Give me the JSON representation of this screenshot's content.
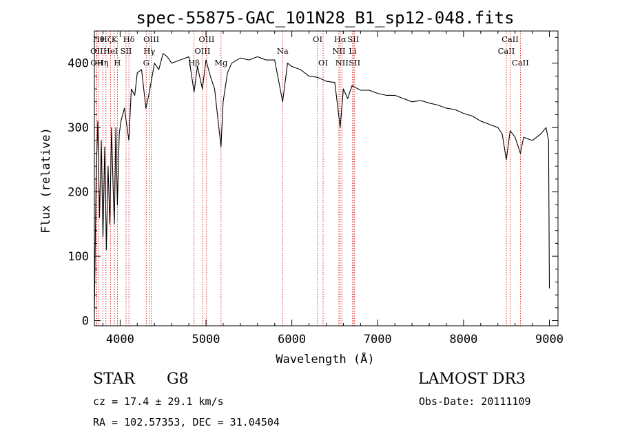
{
  "chart_data": {
    "type": "line",
    "title": "spec-55875-GAC_101N28_B1_sp12-048.fits",
    "xlabel": "Wavelength (Å)",
    "ylabel": "Flux (relative)",
    "xlim": [
      3700,
      9100
    ],
    "ylim": [
      -8,
      450
    ],
    "x_ticks": [
      4000,
      5000,
      6000,
      7000,
      8000,
      9000
    ],
    "y_ticks": [
      0,
      100,
      200,
      300,
      400
    ],
    "x_tick_labels": [
      "4000",
      "5000",
      "6000",
      "7000",
      "8000",
      "9000"
    ],
    "y_tick_labels": [
      "0",
      "100",
      "200",
      "300",
      "400"
    ],
    "series": [
      {
        "name": "spectrum",
        "color": "#000000",
        "x": [
          3700,
          3720,
          3740,
          3760,
          3780,
          3800,
          3820,
          3840,
          3860,
          3880,
          3900,
          3920,
          3933,
          3950,
          3968,
          3990,
          4010,
          4050,
          4102,
          4130,
          4170,
          4200,
          4250,
          4300,
          4340,
          4400,
          4450,
          4500,
          4550,
          4600,
          4700,
          4800,
          4861,
          4900,
          4958,
          5000,
          5050,
          5100,
          5150,
          5175,
          5200,
          5250,
          5300,
          5400,
          5500,
          5600,
          5700,
          5800,
          5893,
          5950,
          6000,
          6100,
          6200,
          6300,
          6400,
          6500,
          6563,
          6600,
          6650,
          6700,
          6800,
          6900,
          7000,
          7100,
          7200,
          7300,
          7400,
          7500,
          7600,
          7700,
          7800,
          7900,
          8000,
          8100,
          8200,
          8300,
          8400,
          8450,
          8498,
          8542,
          8600,
          8662,
          8700,
          8800,
          8900,
          8960,
          8990,
          9000
        ],
        "values": [
          10,
          220,
          310,
          160,
          280,
          130,
          270,
          110,
          240,
          150,
          300,
          200,
          150,
          300,
          180,
          290,
          310,
          330,
          280,
          360,
          350,
          385,
          390,
          330,
          355,
          400,
          390,
          415,
          410,
          400,
          405,
          410,
          355,
          395,
          360,
          405,
          380,
          360,
          300,
          270,
          340,
          385,
          400,
          408,
          405,
          410,
          405,
          405,
          340,
          400,
          395,
          390,
          380,
          378,
          372,
          370,
          300,
          360,
          345,
          365,
          358,
          358,
          353,
          350,
          350,
          345,
          340,
          342,
          338,
          335,
          330,
          328,
          322,
          318,
          310,
          305,
          300,
          290,
          250,
          295,
          285,
          260,
          285,
          280,
          290,
          300,
          280,
          50
        ]
      }
    ],
    "line_markers": [
      {
        "wl": 3750,
        "label": "Hθ",
        "row": 0
      },
      {
        "wl": 3726,
        "label": "OII",
        "row": 1
      },
      {
        "wl": 3729,
        "label": "OII",
        "row": 2
      },
      {
        "wl": 3798,
        "label": "Hη",
        "row": 2
      },
      {
        "wl": 3835,
        "label": "Hζ",
        "row": 0
      },
      {
        "wl": 3889,
        "label": "HeI",
        "row": 1
      },
      {
        "wl": 3933,
        "label": "K",
        "row": 0
      },
      {
        "wl": 3968,
        "label": "H",
        "row": 2
      },
      {
        "wl": 4069,
        "label": "SII",
        "row": 1
      },
      {
        "wl": 4102,
        "label": "Hδ",
        "row": 0
      },
      {
        "wl": 4304,
        "label": "G",
        "row": 2
      },
      {
        "wl": 4340,
        "label": "Hγ",
        "row": 1
      },
      {
        "wl": 4363,
        "label": "OIII",
        "row": 0
      },
      {
        "wl": 4861,
        "label": "Hβ",
        "row": 2
      },
      {
        "wl": 4959,
        "label": "OIII",
        "row": 1
      },
      {
        "wl": 5007,
        "label": "OIII",
        "row": 0
      },
      {
        "wl": 5175,
        "label": "Mg",
        "row": 2
      },
      {
        "wl": 5893,
        "label": "Na",
        "row": 1
      },
      {
        "wl": 6300,
        "label": "OI",
        "row": 0
      },
      {
        "wl": 6364,
        "label": "OI",
        "row": 2
      },
      {
        "wl": 6548,
        "label": "NII",
        "row": 1
      },
      {
        "wl": 6563,
        "label": "Hα",
        "row": 0
      },
      {
        "wl": 6583,
        "label": "NII",
        "row": 2
      },
      {
        "wl": 6708,
        "label": "Li",
        "row": 1
      },
      {
        "wl": 6716,
        "label": "SII",
        "row": 0
      },
      {
        "wl": 6731,
        "label": "SII",
        "row": 2
      },
      {
        "wl": 8498,
        "label": "CaII",
        "row": 1
      },
      {
        "wl": 8542,
        "label": "CaII",
        "row": 0
      },
      {
        "wl": 8662,
        "label": "CaII",
        "row": 2
      }
    ],
    "marker_color": "#cc0000"
  },
  "info": {
    "class": "STAR",
    "subclass": "G8",
    "survey": "LAMOST DR3",
    "cz": "cz = 17.4 ± 29.1 km/s",
    "obs_date": "Obs-Date: 20111109",
    "coords": "RA = 102.57353, DEC =  31.04504"
  }
}
